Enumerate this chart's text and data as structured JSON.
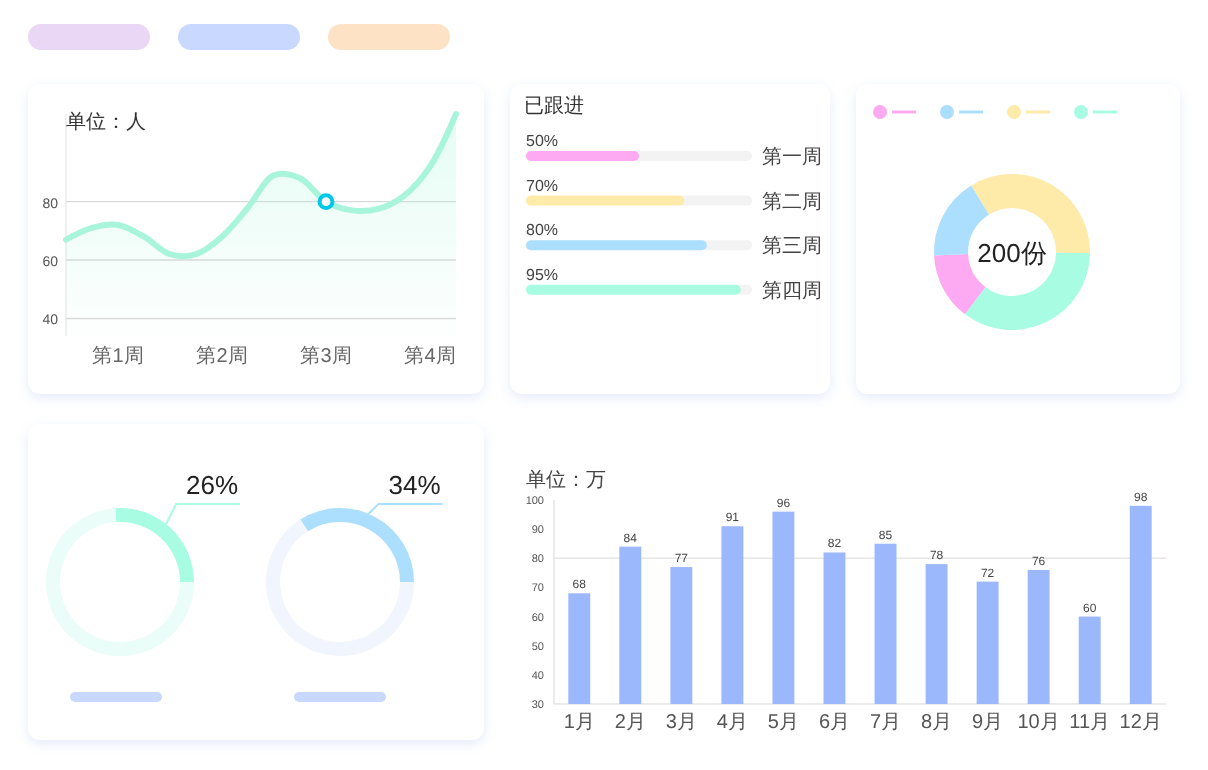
{
  "chart_data": [
    {
      "type": "area",
      "ylabel": "单位：人",
      "categories": [
        null,
        null,
        "第1周",
        null,
        null,
        null,
        "第2周",
        null,
        null,
        null,
        "第3周",
        null,
        null,
        null,
        "第4周",
        null
      ],
      "ylim": [
        34,
        110
      ],
      "yticks": [
        40,
        60,
        80
      ],
      "grid": "y",
      "series": [
        {
          "type": "area",
          "color": "#a8f5dc",
          "values": [
            67,
            71,
            72,
            68,
            62,
            62,
            68,
            78,
            89,
            88,
            80,
            77,
            77.5,
            82,
            92,
            110
          ]
        },
        {
          "type": "scatter",
          "color": "#00c8e8",
          "marker": "circle",
          "x": [
            "第3周"
          ],
          "values": [
            80
          ]
        }
      ]
    },
    {
      "type": "bar",
      "orientation": "horizontal",
      "title": "已跟进",
      "categories": [
        "第一周",
        "第二周",
        "第三周",
        "第四周"
      ],
      "values": [
        50,
        70,
        80,
        95
      ],
      "colors": [
        "#fdaaf3",
        "#feeaa9",
        "#abdffd",
        "#a7fce1"
      ],
      "value_labels": [
        "50%",
        "70%",
        "80%",
        "95%"
      ],
      "xlim": [
        0,
        100
      ],
      "tick_labels": "y"
    },
    {
      "type": "donut",
      "categories": [
        null,
        null,
        null,
        null
      ],
      "values": [
        14,
        17,
        34,
        35
      ],
      "colors": [
        "#fdaaf3",
        "#abdffd",
        "#feeaa9",
        "#a7fce1"
      ],
      "annotations": [
        "200份"
      ]
    },
    {
      "type": "donut",
      "categories": [
        null,
        null
      ],
      "values": [
        26,
        74
      ],
      "colors": [
        "#a7fce1",
        "#eafdf8"
      ],
      "value_labels": [
        "26%",
        null
      ]
    },
    {
      "type": "donut",
      "categories": [
        null,
        null
      ],
      "values": [
        34,
        66
      ],
      "colors": [
        "#abdffd",
        "#f1f5fd"
      ],
      "value_labels": [
        "34%",
        null
      ]
    },
    {
      "type": "bar",
      "ylabel": "单位：万",
      "categories": [
        "1月",
        "2月",
        "3月",
        "4月",
        "5月",
        "6月",
        "7月",
        "8月",
        "9月",
        "10月",
        "11月",
        "12月"
      ],
      "values": [
        68,
        84,
        77,
        91,
        96,
        82,
        85,
        78,
        72,
        76,
        60,
        98
      ],
      "color": "#9cb8fd",
      "ylim": [
        30,
        100
      ],
      "yticks": [
        30,
        40,
        50,
        60,
        70,
        80,
        90,
        100
      ],
      "data_labels": true,
      "ref_lines": [
        {
          "axis": "y",
          "value": 80,
          "color": "#e6e6e6"
        }
      ]
    }
  ]
}
